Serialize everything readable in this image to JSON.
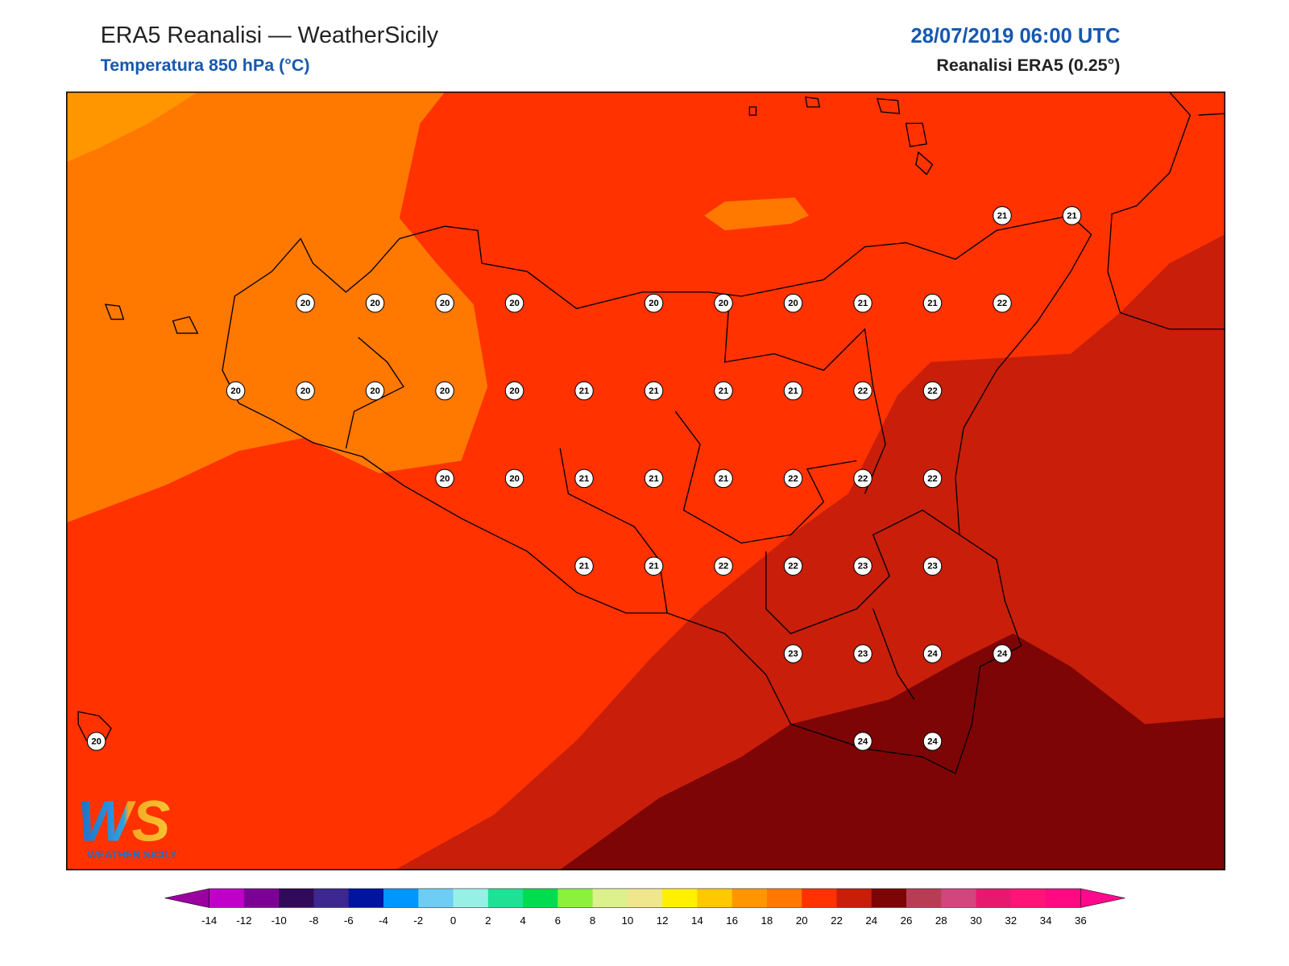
{
  "header": {
    "title": "ERA5 Reanalisi — WeatherSicily",
    "subtitle": "Temperatura 850 hPa (°C)",
    "datetime": "28/07/2019 06:00 UTC",
    "source": "Reanalisi ERA5 (0.25°)"
  },
  "logo": {
    "mark": "WS",
    "text": "WEATHER SICILY"
  },
  "stations": [
    {
      "value": 21
    },
    {
      "value": 21
    },
    {
      "value": 20
    },
    {
      "value": 20
    },
    {
      "value": 20
    },
    {
      "value": 20
    },
    {
      "value": 20
    },
    {
      "value": 20
    },
    {
      "value": 20
    },
    {
      "value": 21
    },
    {
      "value": 21
    },
    {
      "value": 22
    },
    {
      "value": 20
    },
    {
      "value": 20
    },
    {
      "value": 20
    },
    {
      "value": 20
    },
    {
      "value": 20
    },
    {
      "value": 21
    },
    {
      "value": 21
    },
    {
      "value": 21
    },
    {
      "value": 21
    },
    {
      "value": 22
    },
    {
      "value": 22
    },
    {
      "value": 20
    },
    {
      "value": 20
    },
    {
      "value": 21
    },
    {
      "value": 21
    },
    {
      "value": 21
    },
    {
      "value": 22
    },
    {
      "value": 22
    },
    {
      "value": 22
    },
    {
      "value": 21
    },
    {
      "value": 21
    },
    {
      "value": 22
    },
    {
      "value": 22
    },
    {
      "value": 23
    },
    {
      "value": 23
    },
    {
      "value": 23
    },
    {
      "value": 23
    },
    {
      "value": 24
    },
    {
      "value": 24
    },
    {
      "value": 20
    },
    {
      "value": 24
    },
    {
      "value": 24
    }
  ],
  "colorbar": {
    "under": "#9b00a0",
    "over": "#ff0a8c",
    "colors": [
      "#c000c8",
      "#7d0096",
      "#320a5a",
      "#3c2890",
      "#0014a0",
      "#0096ff",
      "#6ecdf5",
      "#96f0e6",
      "#1ee196",
      "#00dc50",
      "#8cf03c",
      "#dcf08c",
      "#f0e68c",
      "#fff000",
      "#ffc800",
      "#ff9600",
      "#ff7800",
      "#ff3200",
      "#c81e0a",
      "#7d0505",
      "#b93c55",
      "#d2467d",
      "#e6196e",
      "#ff1478",
      "#ff0a82"
    ],
    "ticks": [
      -14,
      -12,
      -10,
      -8,
      -6,
      -4,
      -2,
      0,
      2,
      4,
      6,
      8,
      10,
      12,
      14,
      16,
      18,
      20,
      22,
      24,
      26,
      28,
      30,
      32,
      34,
      36
    ]
  }
}
